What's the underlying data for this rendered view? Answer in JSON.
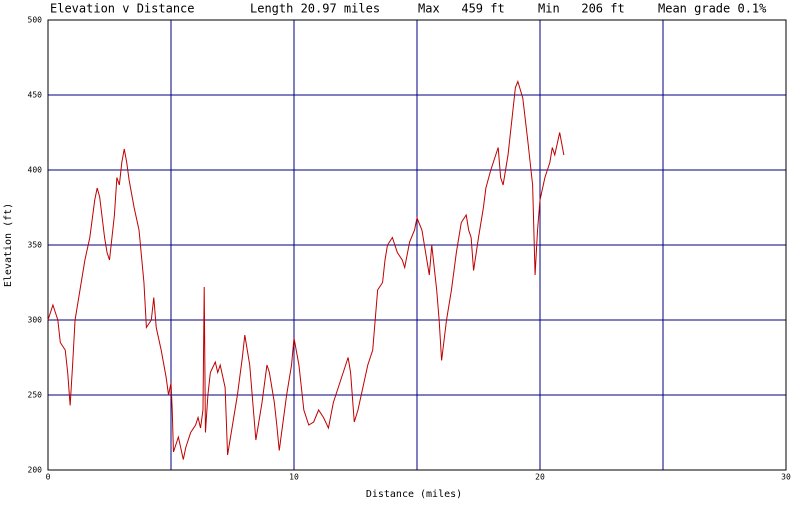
{
  "chart_data": {
    "type": "line",
    "title": "Elevation v Distance",
    "stats": [
      "Length 20.97 miles",
      "Max   459 ft",
      "Min   206 ft",
      "Mean grade 0.1%"
    ],
    "xlabel": "Distance (miles)",
    "ylabel": "Elevation (ft)",
    "xlim": [
      0,
      30
    ],
    "ylim": [
      200,
      500
    ],
    "xticks": [
      0,
      10,
      20,
      30
    ],
    "xminor": [
      5,
      15,
      25
    ],
    "yticks": [
      200,
      250,
      300,
      350,
      400,
      450,
      500
    ],
    "grid": true,
    "grid_color": "#000080",
    "color": "#c00000",
    "x": [
      0.0,
      0.2,
      0.3,
      0.4,
      0.5,
      0.7,
      0.8,
      0.9,
      1.0,
      1.1,
      1.3,
      1.5,
      1.7,
      1.9,
      2.0,
      2.1,
      2.3,
      2.4,
      2.5,
      2.6,
      2.7,
      2.8,
      2.9,
      3.0,
      3.1,
      3.2,
      3.3,
      3.5,
      3.7,
      3.9,
      4.0,
      4.2,
      4.3,
      4.4,
      4.6,
      4.8,
      4.9,
      5.0,
      5.05,
      5.1,
      5.3,
      5.5,
      5.6,
      5.8,
      6.0,
      6.1,
      6.2,
      6.3,
      6.35,
      6.4,
      6.5,
      6.6,
      6.8,
      6.9,
      7.0,
      7.2,
      7.3,
      7.5,
      7.7,
      7.9,
      8.0,
      8.2,
      8.45,
      8.7,
      8.9,
      9.0,
      9.2,
      9.3,
      9.4,
      9.7,
      9.9,
      10.0,
      10.2,
      10.4,
      10.6,
      10.8,
      11.0,
      11.2,
      11.4,
      11.6,
      11.8,
      12.0,
      12.2,
      12.3,
      12.45,
      12.6,
      12.8,
      13.0,
      13.2,
      13.3,
      13.4,
      13.6,
      13.7,
      13.8,
      14.0,
      14.2,
      14.4,
      14.5,
      14.7,
      14.9,
      15.0,
      15.2,
      15.4,
      15.5,
      15.6,
      15.8,
      15.9,
      16.0,
      16.2,
      16.4,
      16.6,
      16.8,
      17.0,
      17.1,
      17.2,
      17.3,
      17.5,
      17.7,
      17.8,
      18.0,
      18.2,
      18.3,
      18.4,
      18.5,
      18.7,
      18.9,
      19.0,
      19.1,
      19.3,
      19.5,
      19.7,
      19.8,
      19.9,
      20.0,
      20.2,
      20.4,
      20.5,
      20.6,
      20.8,
      20.97
    ],
    "values": [
      300,
      310,
      305,
      300,
      285,
      280,
      265,
      243,
      270,
      300,
      320,
      340,
      355,
      380,
      388,
      382,
      355,
      345,
      340,
      355,
      370,
      395,
      390,
      405,
      414,
      405,
      393,
      375,
      360,
      325,
      295,
      300,
      315,
      295,
      280,
      262,
      250,
      258,
      240,
      212,
      222,
      207,
      215,
      225,
      230,
      235,
      228,
      240,
      322,
      225,
      250,
      265,
      272,
      265,
      270,
      255,
      210,
      230,
      250,
      275,
      290,
      270,
      220,
      245,
      270,
      265,
      245,
      230,
      213,
      250,
      270,
      288,
      270,
      240,
      230,
      232,
      240,
      235,
      228,
      245,
      255,
      265,
      275,
      265,
      232,
      240,
      255,
      270,
      280,
      300,
      320,
      325,
      340,
      350,
      355,
      345,
      340,
      335,
      352,
      360,
      368,
      360,
      340,
      330,
      350,
      320,
      300,
      273,
      300,
      320,
      345,
      365,
      370,
      360,
      355,
      333,
      355,
      375,
      388,
      400,
      410,
      415,
      395,
      390,
      410,
      440,
      455,
      459,
      448,
      420,
      390,
      330,
      360,
      380,
      395,
      405,
      415,
      410,
      425,
      410
    ]
  }
}
